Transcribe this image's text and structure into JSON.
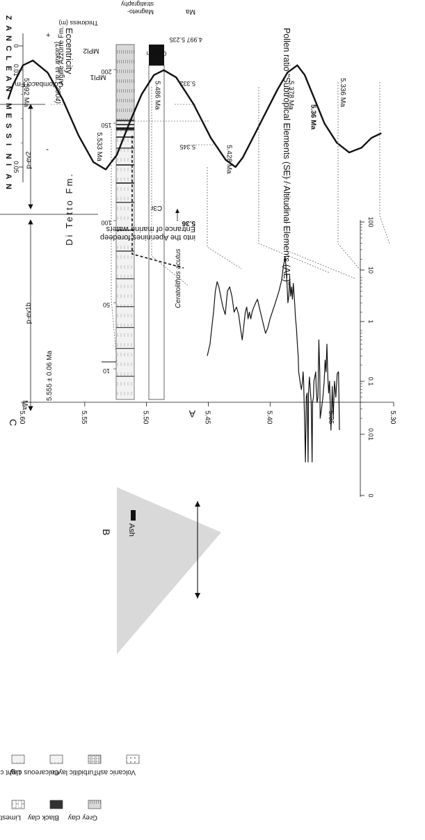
{
  "figure": {
    "panel_labels": {
      "a": "A",
      "b": "B",
      "c": "C"
    },
    "section_left": {
      "stages": [
        "ZANCLEAN",
        "MESSINIAN"
      ],
      "units": [
        "p-ev2",
        "p-ev1b"
      ],
      "columns": {
        "thickness": "Thickness (m)",
        "magneto": "Magneto-stratigraphy",
        "ma": "Ma"
      },
      "formations": [
        "Argille Azzurre Fm.",
        "Colombacci Fm.",
        "Di Tetto Fm."
      ],
      "biozones": [
        "MPl2",
        "MPl1"
      ],
      "chron_top": "C3n.4n",
      "chron_main": "C3r",
      "thickness_ticks": [
        "200",
        "150",
        "100",
        "50",
        "10"
      ],
      "ages": [
        "4.997",
        "5.235",
        "5.332",
        "5.345",
        "5.36"
      ],
      "marker_species": "Ceratolithus acutus",
      "ash_age": "5.555 ± 0.06 Ma",
      "marine_entrance": [
        "Entrance of marine waters",
        "into the Apennines foredeep"
      ]
    },
    "legend": {
      "items": [
        "Light clay",
        "Calcareous clay",
        "Turbiditic layer",
        "Volcanic ash",
        "Limestone",
        "Black clay",
        "Grey clay"
      ]
    }
  },
  "chart_data": [
    {
      "type": "line",
      "title": "Pollen ratio \"Subtropical Elements (SE) / Altitudinal Elements (AE)\"",
      "xlabel": "",
      "ylabel": "",
      "x_scale": "log",
      "xlim": [
        0,
        100
      ],
      "x_ticks": [
        "0",
        "0.01",
        "0.1",
        "1",
        "10",
        "100"
      ],
      "annotation": "Ash",
      "series": [
        {
          "values": [
            [
              0.012,
              5.305
            ],
            [
              0.15,
              5.307
            ],
            [
              0.14,
              5.31
            ],
            [
              0.05,
              5.313
            ],
            [
              0.1,
              5.316
            ],
            [
              0.02,
              5.319
            ],
            [
              0.08,
              5.321
            ],
            [
              0.012,
              5.324
            ],
            [
              0.1,
              5.327
            ],
            [
              0.06,
              5.329
            ],
            [
              0.12,
              5.331
            ],
            [
              0.5,
              5.333
            ],
            [
              0.15,
              5.335
            ],
            [
              0.25,
              5.337
            ],
            [
              0.1,
              5.339
            ],
            [
              0.05,
              5.342
            ],
            [
              0.03,
              5.345
            ],
            [
              0.02,
              5.348
            ],
            [
              0.15,
              5.349
            ],
            [
              0.6,
              5.351
            ],
            [
              0.05,
              5.353
            ],
            [
              0.04,
              5.355
            ],
            [
              0.08,
              5.357
            ],
            [
              0.15,
              5.358
            ],
            [
              0.12,
              5.36
            ],
            [
              0.1,
              5.362
            ],
            [
              0.05,
              5.363
            ],
            [
              0.04,
              5.365
            ],
            [
              0.003,
              5.366
            ],
            [
              0.04,
              5.368
            ],
            [
              0.07,
              5.37
            ],
            [
              0.12,
              5.372
            ],
            [
              0.06,
              5.374
            ],
            [
              0.003,
              5.375
            ],
            [
              0.06,
              5.377
            ],
            [
              0.05,
              5.379
            ],
            [
              0.003,
              5.381
            ],
            [
              0.02,
              5.383
            ],
            [
              0.1,
              5.385
            ],
            [
              0.15,
              5.386
            ],
            [
              0.09,
              5.388
            ],
            [
              0.07,
              5.39
            ],
            [
              0.1,
              5.393
            ],
            [
              0.15,
              5.396
            ],
            [
              0.3,
              5.397
            ],
            [
              0.5,
              5.399
            ],
            [
              1.0,
              5.401
            ],
            [
              1.5,
              5.403
            ],
            [
              3.0,
              5.405
            ],
            [
              7.0,
              5.408
            ],
            [
              3.5,
              5.41
            ],
            [
              6.0,
              5.412
            ],
            [
              4.0,
              5.414
            ],
            [
              9.0,
              5.416
            ],
            [
              4.0,
              5.418
            ],
            [
              3.0,
              5.42
            ],
            [
              7.0,
              5.422
            ],
            [
              12.0,
              5.424
            ],
            [
              22.0,
              5.426
            ],
            [
              15.0,
              5.43
            ],
            [
              8.0,
              5.434
            ],
            [
              5.0,
              5.44
            ],
            [
              3.0,
              5.448
            ],
            [
              2.0,
              5.455
            ],
            [
              1.5,
              5.46
            ],
            [
              1.0,
              5.465
            ],
            [
              0.8,
              5.47
            ],
            [
              1.2,
              5.475
            ],
            [
              1.8,
              5.48
            ],
            [
              2.5,
              5.484
            ],
            [
              3.5,
              5.488
            ],
            [
              3.0,
              5.492
            ],
            [
              2.5,
              5.496
            ],
            [
              2.0,
              5.5
            ],
            [
              1.5,
              5.503
            ],
            [
              2.0,
              5.506
            ],
            [
              1.5,
              5.509
            ],
            [
              2.5,
              5.512
            ],
            [
              2.0,
              5.515
            ],
            [
              1.2,
              5.518
            ],
            [
              0.6,
              5.522
            ],
            [
              1.0,
              5.526
            ],
            [
              1.8,
              5.53
            ],
            [
              2.5,
              5.535
            ],
            [
              2.0,
              5.54
            ],
            [
              4.0,
              5.545
            ],
            [
              6.0,
              5.55
            ],
            [
              5.0,
              5.555
            ],
            [
              1.8,
              5.56
            ],
            [
              2.5,
              5.565
            ],
            [
              4.0,
              5.57
            ],
            [
              6.0,
              5.574
            ],
            [
              7.5,
              5.578
            ],
            [
              5.0,
              5.582
            ],
            [
              2.0,
              5.586
            ],
            [
              1.0,
              5.59
            ],
            [
              0.5,
              5.594
            ],
            [
              0.3,
              5.6
            ]
          ]
        }
      ]
    },
    {
      "type": "line",
      "title": "Eccentricity",
      "subtitle": "(Laskar et al., 2004)",
      "y_scale_signs": [
        "+",
        "-"
      ],
      "x_ticks": [
        "0.05",
        "0.01",
        "0"
      ],
      "xlim": [
        0.06,
        0
      ],
      "y_ticks": [
        "5.30",
        "5.35",
        "5.40",
        "5.45",
        "5.50",
        "5.55",
        "5.60"
      ],
      "ylim": [
        5.29,
        5.62
      ],
      "ylabel": "Ma",
      "peaks": [
        "5.336 Ma",
        "5.36 Ma",
        "5.378 Ma",
        "5.428 Ma",
        "5.486 Ma",
        "5.533 Ma",
        "5.592 Ma"
      ],
      "series": [
        {
          "values": [
            [
              0.036,
              5.31
            ],
            [
              0.038,
              5.318
            ],
            [
              0.042,
              5.326
            ],
            [
              0.044,
              5.336
            ],
            [
              0.04,
              5.346
            ],
            [
              0.032,
              5.356
            ],
            [
              0.022,
              5.364
            ],
            [
              0.012,
              5.372
            ],
            [
              0.008,
              5.378
            ],
            [
              0.011,
              5.386
            ],
            [
              0.018,
              5.394
            ],
            [
              0.028,
              5.404
            ],
            [
              0.038,
              5.414
            ],
            [
              0.046,
              5.422
            ],
            [
              0.05,
              5.428
            ],
            [
              0.047,
              5.436
            ],
            [
              0.038,
              5.448
            ],
            [
              0.024,
              5.462
            ],
            [
              0.013,
              5.476
            ],
            [
              0.01,
              5.486
            ],
            [
              0.012,
              5.494
            ],
            [
              0.02,
              5.504
            ],
            [
              0.032,
              5.514
            ],
            [
              0.045,
              5.524
            ],
            [
              0.051,
              5.533
            ],
            [
              0.048,
              5.543
            ],
            [
              0.037,
              5.555
            ],
            [
              0.022,
              5.568
            ],
            [
              0.011,
              5.58
            ],
            [
              0.006,
              5.592
            ],
            [
              0.008,
              5.6
            ],
            [
              0.016,
              5.608
            ],
            [
              0.022,
              5.612
            ]
          ]
        }
      ]
    }
  ]
}
